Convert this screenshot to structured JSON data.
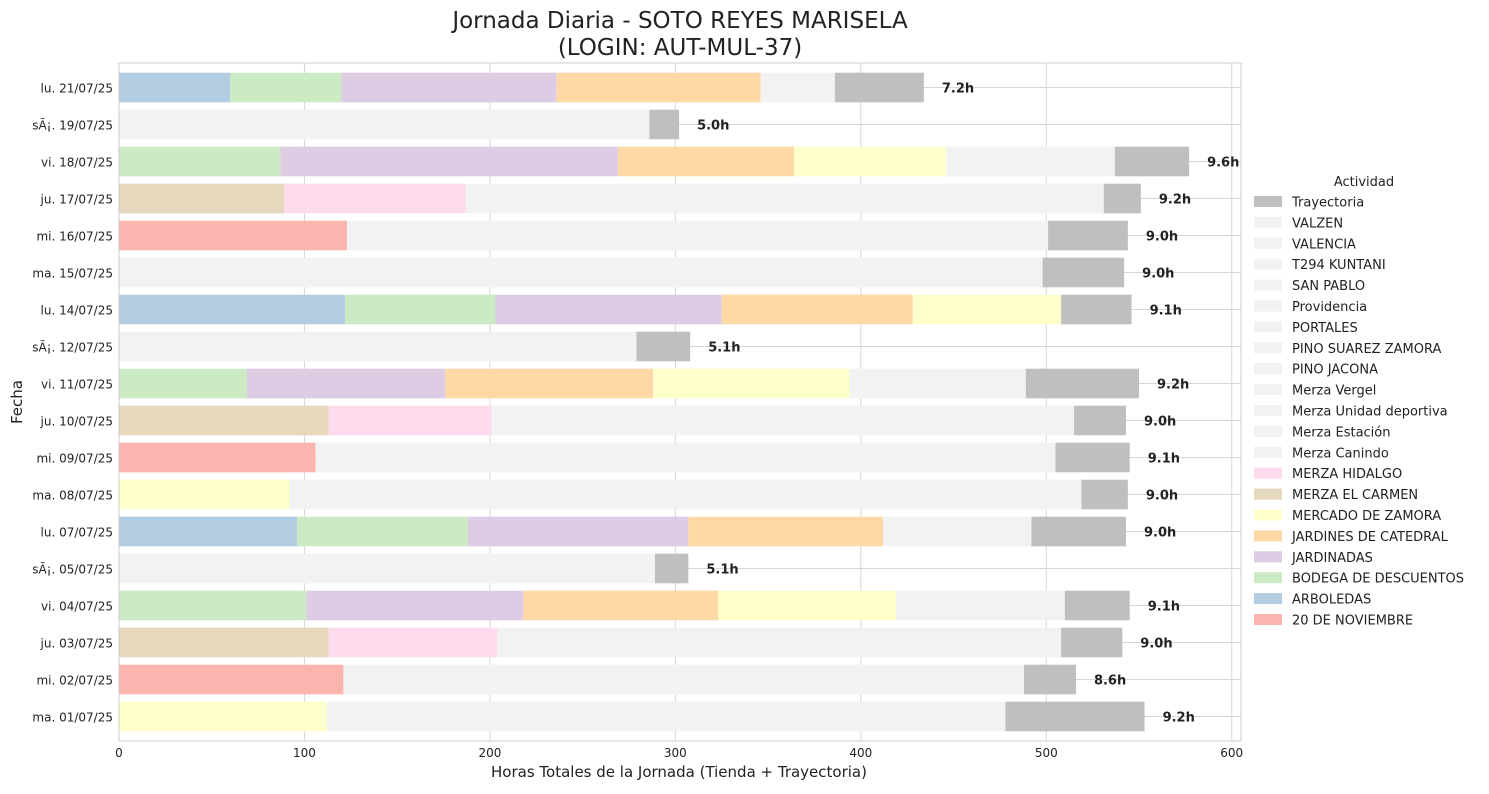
{
  "chart_data": {
    "type": "bar",
    "orientation": "horizontal",
    "stacked": true,
    "title": "Jornada Diaria - SOTO REYES MARISELA",
    "subtitle": "(LOGIN: AUT-MUL-37)",
    "xlabel": "Horas Totales de la Jornada (Tienda + Trayectoria)",
    "ylabel": "Fecha",
    "xlim": [
      0,
      605
    ],
    "xticks": [
      0,
      100,
      200,
      300,
      400,
      500,
      600
    ],
    "grid": true,
    "legend": {
      "title": "Actividad",
      "placement": "right",
      "entries": [
        "Trayectoria",
        "VALZEN",
        "VALENCIA",
        "T294 KUNTANI",
        "SAN PABLO",
        "Providencia",
        "PORTALES",
        "PINO SUAREZ ZAMORA",
        "PINO JACONA",
        "Merza Vergel",
        "Merza Unidad deportiva",
        "Merza Estación",
        "Merza Canindo",
        "MERZA HIDALGO",
        "MERZA EL CARMEN",
        "MERCADO DE ZAMORA",
        "JARDINES DE CATEDRAL",
        "JARDINADAS",
        "BODEGA DE DESCUENTOS",
        "ARBOLEDAS",
        "20 DE NOVIEMBRE"
      ]
    },
    "colors": {
      "Trayectoria": "#bfbfbf",
      "store_default": "#f2f2f2",
      "MERZA HIDALGO": "#fddaec",
      "MERZA EL CARMEN": "#e5d8bd",
      "MERCADO DE ZAMORA": "#ffffcc",
      "JARDINES DE CATEDRAL": "#fed9a6",
      "JARDINADAS": "#decbe4",
      "BODEGA DE DESCUENTOS": "#ccebc5",
      "ARBOLEDAS": "#b3cde3",
      "20 DE NOVIEMBRE": "#fbb4ae"
    },
    "categories": [
      "lu. 21/07/25",
      "sÃ¡. 19/07/25",
      "vi. 18/07/25",
      "ju. 17/07/25",
      "mi. 16/07/25",
      "ma. 15/07/25",
      "lu. 14/07/25",
      "sÃ¡. 12/07/25",
      "vi. 11/07/25",
      "ju. 10/07/25",
      "mi. 09/07/25",
      "ma. 08/07/25",
      "lu. 07/07/25",
      "sÃ¡. 05/07/25",
      "vi. 04/07/25",
      "ju. 03/07/25",
      "mi. 02/07/25",
      "ma. 01/07/25"
    ],
    "bars": [
      {
        "date": "lu. 21/07/25",
        "total_label": "7.2h",
        "segments": [
          {
            "activity": "ARBOLEDAS",
            "value": 60
          },
          {
            "activity": "BODEGA DE DESCUENTOS",
            "value": 60
          },
          {
            "activity": "JARDINADAS",
            "value": 116
          },
          {
            "activity": "JARDINES DE CATEDRAL",
            "value": 110
          },
          {
            "activity": "VALZEN",
            "value": 40
          },
          {
            "activity": "Trayectoria",
            "value": 48
          }
        ]
      },
      {
        "date": "sÃ¡. 19/07/25",
        "total_label": "5.0h",
        "segments": [
          {
            "activity": "VALZEN",
            "value": 286
          },
          {
            "activity": "Trayectoria",
            "value": 16
          }
        ]
      },
      {
        "date": "vi. 18/07/25",
        "total_label": "9.6h",
        "segments": [
          {
            "activity": "BODEGA DE DESCUENTOS",
            "value": 87
          },
          {
            "activity": "JARDINADAS",
            "value": 182
          },
          {
            "activity": "JARDINES DE CATEDRAL",
            "value": 95
          },
          {
            "activity": "MERCADO DE ZAMORA",
            "value": 82
          },
          {
            "activity": "VALZEN",
            "value": 91
          },
          {
            "activity": "Trayectoria",
            "value": 40
          }
        ]
      },
      {
        "date": "ju. 17/07/25",
        "total_label": "9.2h",
        "segments": [
          {
            "activity": "MERZA EL CARMEN",
            "value": 89
          },
          {
            "activity": "MERZA HIDALGO",
            "value": 98
          },
          {
            "activity": "VALZEN",
            "value": 344
          },
          {
            "activity": "Trayectoria",
            "value": 20
          }
        ]
      },
      {
        "date": "mi. 16/07/25",
        "total_label": "9.0h",
        "segments": [
          {
            "activity": "20 DE NOVIEMBRE",
            "value": 123
          },
          {
            "activity": "VALZEN",
            "value": 378
          },
          {
            "activity": "Trayectoria",
            "value": 43
          }
        ]
      },
      {
        "date": "ma. 15/07/25",
        "total_label": "9.0h",
        "segments": [
          {
            "activity": "VALZEN",
            "value": 498
          },
          {
            "activity": "Trayectoria",
            "value": 44
          }
        ]
      },
      {
        "date": "lu. 14/07/25",
        "total_label": "9.1h",
        "segments": [
          {
            "activity": "ARBOLEDAS",
            "value": 122
          },
          {
            "activity": "BODEGA DE DESCUENTOS",
            "value": 81
          },
          {
            "activity": "JARDINADAS",
            "value": 122
          },
          {
            "activity": "JARDINES DE CATEDRAL",
            "value": 103
          },
          {
            "activity": "MERCADO DE ZAMORA",
            "value": 80
          },
          {
            "activity": "Trayectoria",
            "value": 38
          }
        ]
      },
      {
        "date": "sÃ¡. 12/07/25",
        "total_label": "5.1h",
        "segments": [
          {
            "activity": "VALZEN",
            "value": 279
          },
          {
            "activity": "Trayectoria",
            "value": 29
          }
        ]
      },
      {
        "date": "vi. 11/07/25",
        "total_label": "9.2h",
        "segments": [
          {
            "activity": "BODEGA DE DESCUENTOS",
            "value": 69
          },
          {
            "activity": "JARDINADAS",
            "value": 107
          },
          {
            "activity": "JARDINES DE CATEDRAL",
            "value": 112
          },
          {
            "activity": "MERCADO DE ZAMORA",
            "value": 106
          },
          {
            "activity": "VALZEN",
            "value": 95
          },
          {
            "activity": "Trayectoria",
            "value": 61
          }
        ]
      },
      {
        "date": "ju. 10/07/25",
        "total_label": "9.0h",
        "segments": [
          {
            "activity": "MERZA EL CARMEN",
            "value": 113
          },
          {
            "activity": "MERZA HIDALGO",
            "value": 88
          },
          {
            "activity": "VALZEN",
            "value": 314
          },
          {
            "activity": "Trayectoria",
            "value": 28
          }
        ]
      },
      {
        "date": "mi. 09/07/25",
        "total_label": "9.1h",
        "segments": [
          {
            "activity": "20 DE NOVIEMBRE",
            "value": 106
          },
          {
            "activity": "VALZEN",
            "value": 399
          },
          {
            "activity": "Trayectoria",
            "value": 40
          }
        ]
      },
      {
        "date": "ma. 08/07/25",
        "total_label": "9.0h",
        "segments": [
          {
            "activity": "MERCADO DE ZAMORA",
            "value": 92
          },
          {
            "activity": "VALZEN",
            "value": 427
          },
          {
            "activity": "Trayectoria",
            "value": 25
          }
        ]
      },
      {
        "date": "lu. 07/07/25",
        "total_label": "9.0h",
        "segments": [
          {
            "activity": "ARBOLEDAS",
            "value": 96
          },
          {
            "activity": "BODEGA DE DESCUENTOS",
            "value": 92
          },
          {
            "activity": "JARDINADAS",
            "value": 119
          },
          {
            "activity": "JARDINES DE CATEDRAL",
            "value": 105
          },
          {
            "activity": "VALZEN",
            "value": 80
          },
          {
            "activity": "Trayectoria",
            "value": 51
          }
        ]
      },
      {
        "date": "sÃ¡. 05/07/25",
        "total_label": "5.1h",
        "segments": [
          {
            "activity": "VALZEN",
            "value": 289
          },
          {
            "activity": "Trayectoria",
            "value": 18
          }
        ]
      },
      {
        "date": "vi. 04/07/25",
        "total_label": "9.1h",
        "segments": [
          {
            "activity": "BODEGA DE DESCUENTOS",
            "value": 101
          },
          {
            "activity": "JARDINADAS",
            "value": 117
          },
          {
            "activity": "JARDINES DE CATEDRAL",
            "value": 105
          },
          {
            "activity": "MERCADO DE ZAMORA",
            "value": 96
          },
          {
            "activity": "VALZEN",
            "value": 91
          },
          {
            "activity": "Trayectoria",
            "value": 35
          }
        ]
      },
      {
        "date": "ju. 03/07/25",
        "total_label": "9.0h",
        "segments": [
          {
            "activity": "MERZA EL CARMEN",
            "value": 113
          },
          {
            "activity": "MERZA HIDALGO",
            "value": 91
          },
          {
            "activity": "VALZEN",
            "value": 304
          },
          {
            "activity": "Trayectoria",
            "value": 33
          }
        ]
      },
      {
        "date": "mi. 02/07/25",
        "total_label": "8.6h",
        "segments": [
          {
            "activity": "20 DE NOVIEMBRE",
            "value": 121
          },
          {
            "activity": "VALZEN",
            "value": 367
          },
          {
            "activity": "Trayectoria",
            "value": 28
          }
        ]
      },
      {
        "date": "ma. 01/07/25",
        "total_label": "9.2h",
        "segments": [
          {
            "activity": "MERCADO DE ZAMORA",
            "value": 112
          },
          {
            "activity": "VALZEN",
            "value": 366
          },
          {
            "activity": "Trayectoria",
            "value": 75
          }
        ]
      }
    ]
  }
}
